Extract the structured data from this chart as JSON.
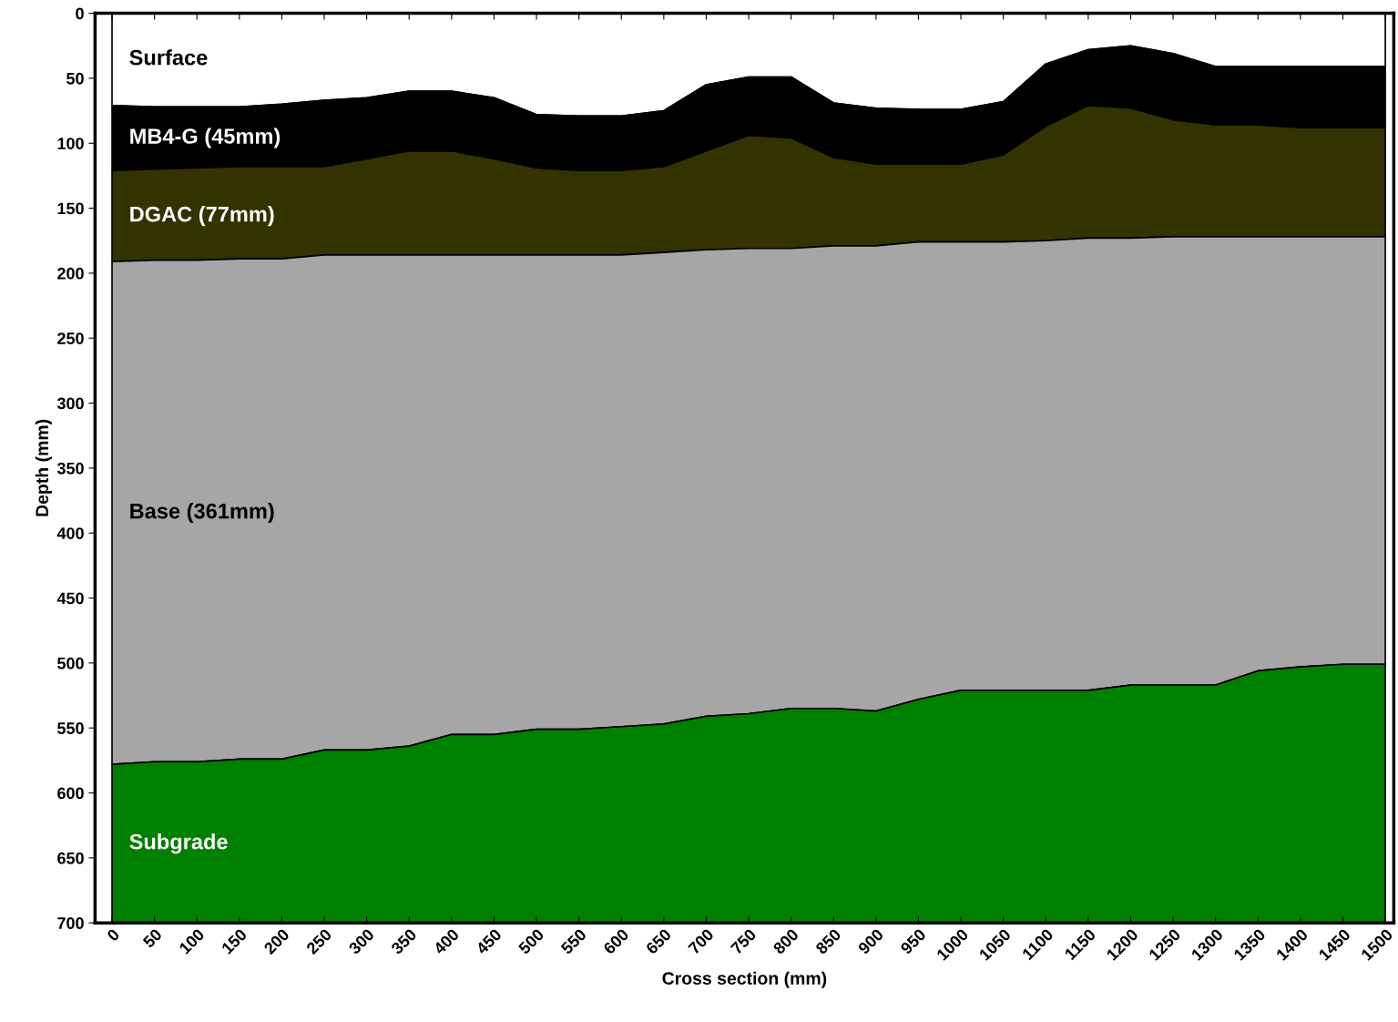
{
  "chart_data": {
    "type": "area",
    "stacked": true,
    "xlabel": "Cross section (mm)",
    "ylabel": "Depth (mm)",
    "x": [
      0,
      50,
      100,
      150,
      200,
      250,
      300,
      350,
      400,
      450,
      500,
      550,
      600,
      650,
      700,
      750,
      800,
      850,
      900,
      950,
      1000,
      1050,
      1100,
      1150,
      1200,
      1250,
      1300,
      1350,
      1400,
      1450,
      1500
    ],
    "series": [
      {
        "name": "Surface",
        "color": "#ffffff",
        "values": [
          71,
          72,
          72,
          72,
          70,
          67,
          65,
          60,
          60,
          65,
          78,
          79,
          79,
          75,
          55,
          49,
          49,
          69,
          73,
          74,
          74,
          68,
          39,
          28,
          25,
          31,
          41,
          41,
          41,
          41,
          41
        ]
      },
      {
        "name": "MB4-G (45mm)",
        "color": "#000000",
        "values": [
          50,
          48,
          47,
          46,
          48,
          51,
          47,
          46,
          46,
          47,
          41,
          42,
          42,
          43,
          51,
          45,
          47,
          42,
          43,
          42,
          42,
          41,
          48,
          43,
          48,
          51,
          45,
          45,
          47,
          47,
          47
        ]
      },
      {
        "name": "DGAC (77mm)",
        "color": "#333300",
        "values": [
          70,
          70,
          71,
          71,
          71,
          68,
          74,
          80,
          80,
          74,
          67,
          65,
          65,
          66,
          76,
          87,
          85,
          68,
          63,
          60,
          60,
          67,
          88,
          102,
          100,
          90,
          86,
          86,
          84,
          84,
          84
        ]
      },
      {
        "name": "Base (361mm)",
        "color": "#a6a6a6",
        "values": [
          387,
          386,
          386,
          385,
          385,
          381,
          381,
          378,
          369,
          369,
          365,
          365,
          363,
          363,
          359,
          358,
          354,
          356,
          358,
          352,
          345,
          345,
          346,
          348,
          344,
          345,
          345,
          334,
          331,
          329,
          329
        ]
      },
      {
        "name": "Subgrade",
        "color": "#008000",
        "values": [
          122,
          124,
          124,
          126,
          126,
          133,
          133,
          136,
          145,
          145,
          149,
          149,
          151,
          153,
          159,
          161,
          165,
          165,
          163,
          172,
          179,
          179,
          179,
          179,
          183,
          183,
          183,
          194,
          197,
          199,
          199
        ]
      }
    ],
    "xlim": [
      -20,
      1510
    ],
    "ylim": [
      700,
      0
    ],
    "xticks": [
      0,
      50,
      100,
      150,
      200,
      250,
      300,
      350,
      400,
      450,
      500,
      550,
      600,
      650,
      700,
      750,
      800,
      850,
      900,
      950,
      1000,
      1050,
      1100,
      1150,
      1200,
      1250,
      1300,
      1350,
      1400,
      1450,
      1500
    ],
    "yticks": [
      0,
      50,
      100,
      150,
      200,
      250,
      300,
      350,
      400,
      450,
      500,
      550,
      600,
      650,
      700
    ],
    "grid": false,
    "legend": false
  }
}
